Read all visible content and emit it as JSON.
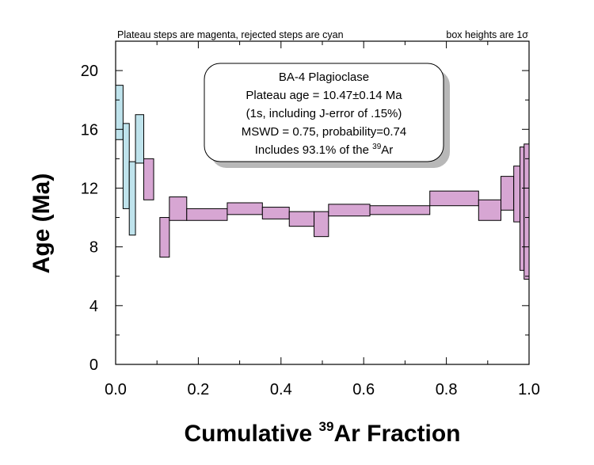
{
  "header": {
    "left_note": "Plateau steps are magenta, rejected steps are cyan",
    "right_note": "box heights are 1σ"
  },
  "info_box": {
    "line1": "BA-4 Plagioclase",
    "line2": "Plateau age = 10.47±0.14 Ma",
    "line3": "(1s, including J-error of .15%)",
    "line4": "MSWD = 0.75, probability=0.74",
    "line5_prefix": "Includes 93.1% of the ",
    "line5_sup": "39",
    "line5_suffix": "Ar"
  },
  "colors": {
    "plateau": "#d7a6d3",
    "rejected": "#bfe3ec",
    "stroke": "#000000"
  },
  "chart_data": {
    "type": "area",
    "xlabel_prefix": "Cumulative ",
    "xlabel_sup": "39",
    "xlabel_suffix": "Ar Fraction",
    "ylabel": "Age (Ma)",
    "xlim": [
      0,
      1
    ],
    "ylim": [
      0,
      22
    ],
    "x_ticks": [
      "0.0",
      "0.2",
      "0.4",
      "0.6",
      "0.8",
      "1.0"
    ],
    "y_ticks": [
      "0",
      "4",
      "8",
      "12",
      "16",
      "20"
    ],
    "series": [
      {
        "name": "rejected",
        "steps": [
          {
            "x0": 0.0,
            "x1": 0.018,
            "y_low": 15.3,
            "y_high": 19.0
          },
          {
            "x0": 0.018,
            "x1": 0.033,
            "y_low": 10.6,
            "y_high": 16.4
          },
          {
            "x0": 0.033,
            "x1": 0.048,
            "y_low": 8.8,
            "y_high": 13.8
          },
          {
            "x0": 0.048,
            "x1": 0.068,
            "y_low": 13.7,
            "y_high": 17.0
          }
        ]
      },
      {
        "name": "plateau",
        "steps": [
          {
            "x0": 0.068,
            "x1": 0.092,
            "y_low": 11.2,
            "y_high": 14.0
          },
          {
            "x0": 0.107,
            "x1": 0.13,
            "y_low": 7.3,
            "y_high": 10.0
          },
          {
            "x0": 0.13,
            "x1": 0.172,
            "y_low": 9.8,
            "y_high": 11.4
          },
          {
            "x0": 0.172,
            "x1": 0.27,
            "y_low": 9.8,
            "y_high": 10.6
          },
          {
            "x0": 0.27,
            "x1": 0.355,
            "y_low": 10.2,
            "y_high": 11.0
          },
          {
            "x0": 0.355,
            "x1": 0.42,
            "y_low": 9.9,
            "y_high": 10.7
          },
          {
            "x0": 0.42,
            "x1": 0.48,
            "y_low": 9.4,
            "y_high": 10.4
          },
          {
            "x0": 0.48,
            "x1": 0.515,
            "y_low": 8.7,
            "y_high": 10.4
          },
          {
            "x0": 0.515,
            "x1": 0.615,
            "y_low": 10.1,
            "y_high": 10.9
          },
          {
            "x0": 0.615,
            "x1": 0.76,
            "y_low": 10.2,
            "y_high": 10.8
          },
          {
            "x0": 0.76,
            "x1": 0.878,
            "y_low": 10.8,
            "y_high": 11.8
          },
          {
            "x0": 0.878,
            "x1": 0.932,
            "y_low": 9.8,
            "y_high": 11.2
          },
          {
            "x0": 0.932,
            "x1": 0.963,
            "y_low": 10.5,
            "y_high": 12.8
          },
          {
            "x0": 0.963,
            "x1": 0.978,
            "y_low": 9.7,
            "y_high": 13.5
          },
          {
            "x0": 0.978,
            "x1": 0.988,
            "y_low": 6.4,
            "y_high": 14.8
          },
          {
            "x0": 0.988,
            "x1": 1.0,
            "y_low": 5.8,
            "y_high": 15.0
          }
        ]
      }
    ]
  }
}
